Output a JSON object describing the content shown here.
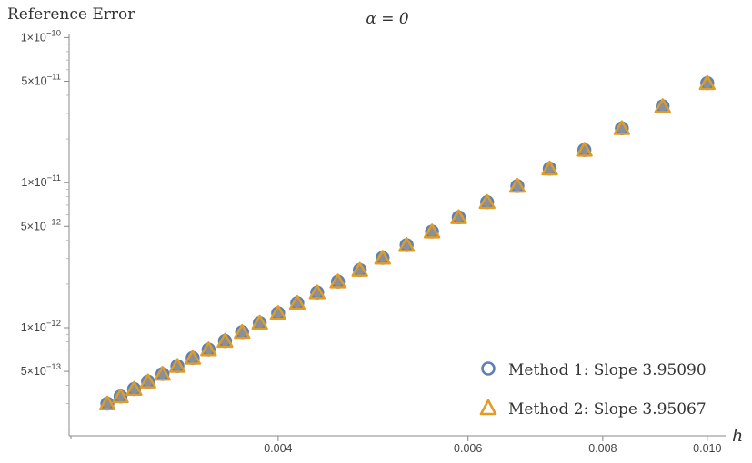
{
  "chart_data": {
    "type": "scatter",
    "title": "α = 0",
    "xlabel": "h",
    "ylabel": "Reference Error",
    "x_scale": "log",
    "y_scale": "log",
    "xlim": [
      0.00256,
      0.0104
    ],
    "ylim": [
      1.8e-13,
      1.05e-10
    ],
    "x_ticks": [
      {
        "value": 0.004,
        "label": "0.004"
      },
      {
        "value": 0.006,
        "label": "0.006"
      },
      {
        "value": 0.008,
        "label": "0.008"
      },
      {
        "value": 0.01,
        "label": "0.010"
      }
    ],
    "y_ticks": [
      {
        "value": 1e-10,
        "mantissa": "1×10",
        "exponent": "−10"
      },
      {
        "value": 5e-11,
        "mantissa": "5×10",
        "exponent": "−11"
      },
      {
        "value": 1e-11,
        "mantissa": "1×10",
        "exponent": "−11"
      },
      {
        "value": 5e-12,
        "mantissa": "5×10",
        "exponent": "−12"
      },
      {
        "value": 1e-12,
        "mantissa": "1×10",
        "exponent": "−12"
      },
      {
        "value": 5e-13,
        "mantissa": "5×10",
        "exponent": "−13"
      }
    ],
    "grid": false,
    "legend_position": "bottom-right",
    "series": [
      {
        "name": "Method 1: Slope 3.95090",
        "marker": "circle",
        "color": "#5e81b5",
        "slope": 3.9509,
        "x": [
          0.002778,
          0.002857,
          0.002941,
          0.00303,
          0.003125,
          0.003226,
          0.003333,
          0.003448,
          0.003571,
          0.003704,
          0.003846,
          0.004,
          0.004167,
          0.004348,
          0.004545,
          0.004762,
          0.005,
          0.005263,
          0.005556,
          0.005882,
          0.00625,
          0.006667,
          0.007143,
          0.007692,
          0.008333,
          0.009091,
          0.01
        ],
        "y": [
          3e-13,
          3.36e-13,
          3.78e-13,
          4.25e-13,
          4.8e-13,
          5.44e-13,
          6.19e-13,
          7.07e-13,
          8.1e-13,
          9.33e-13,
          1.08e-12,
          1.26e-12,
          1.48e-12,
          1.75e-12,
          2.08e-12,
          2.5e-12,
          3.03e-12,
          3.71e-12,
          4.6e-12,
          5.77e-12,
          7.34e-12,
          9.48e-12,
          1.25e-11,
          1.68e-11,
          2.37e-11,
          3.36e-11,
          4.85e-11
        ]
      },
      {
        "name": "Method 2: Slope 3.95067",
        "marker": "triangle",
        "color": "#e19c24",
        "slope": 3.95067,
        "x": [
          0.002778,
          0.002857,
          0.002941,
          0.00303,
          0.003125,
          0.003226,
          0.003333,
          0.003448,
          0.003571,
          0.003704,
          0.003846,
          0.004,
          0.004167,
          0.004348,
          0.004545,
          0.004762,
          0.005,
          0.005263,
          0.005556,
          0.005882,
          0.00625,
          0.006667,
          0.007143,
          0.007692,
          0.008333,
          0.009091,
          0.01
        ],
        "y": [
          3e-13,
          3.36e-13,
          3.78e-13,
          4.25e-13,
          4.8e-13,
          5.44e-13,
          6.19e-13,
          7.07e-13,
          8.1e-13,
          9.33e-13,
          1.08e-12,
          1.26e-12,
          1.48e-12,
          1.75e-12,
          2.08e-12,
          2.5e-12,
          3.03e-12,
          3.71e-12,
          4.6e-12,
          5.77e-12,
          7.34e-12,
          9.48e-12,
          1.25e-11,
          1.68e-11,
          2.37e-11,
          3.36e-11,
          4.85e-11
        ]
      }
    ]
  }
}
